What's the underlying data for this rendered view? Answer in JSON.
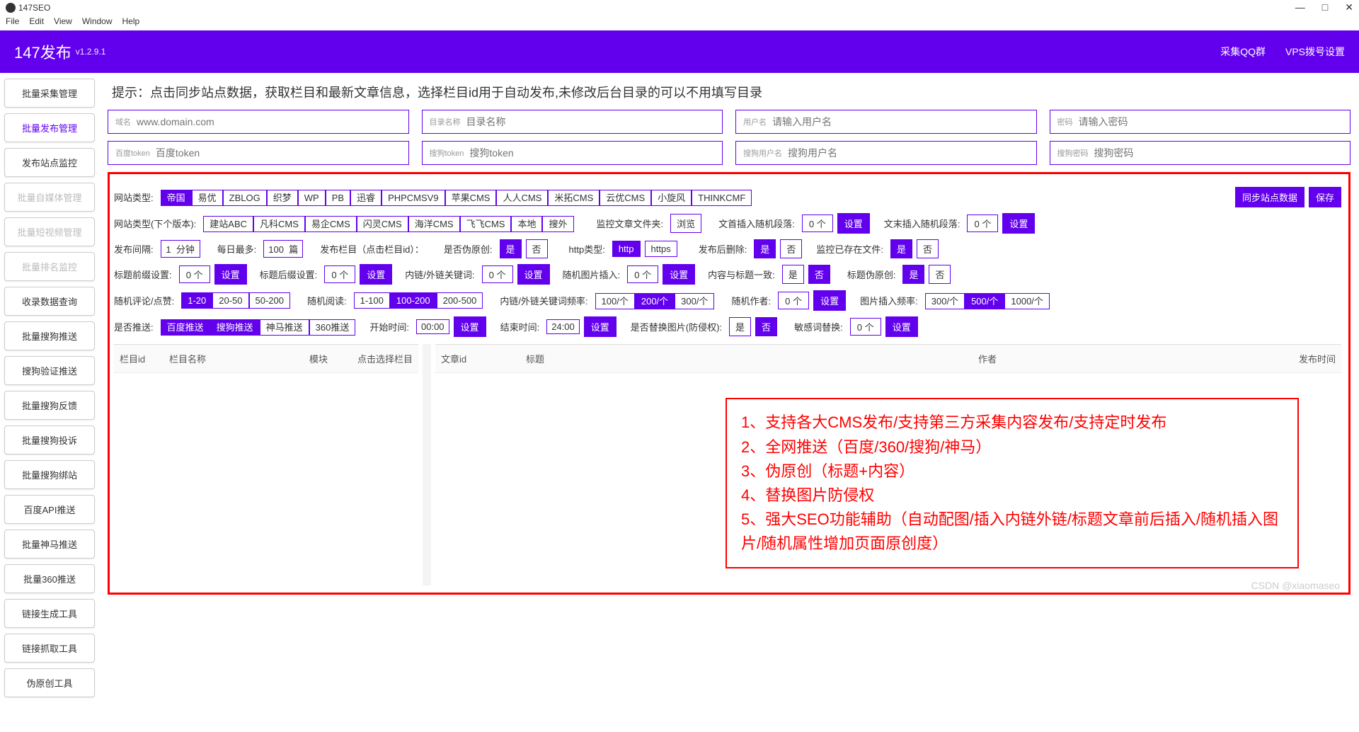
{
  "win": {
    "title": "147SEO",
    "min": "—",
    "max": "□",
    "close": "✕"
  },
  "menu": [
    "File",
    "Edit",
    "View",
    "Window",
    "Help"
  ],
  "header": {
    "title": "147发布",
    "version": "v1.2.9.1",
    "right": [
      "采集QQ群",
      "VPS拨号设置"
    ]
  },
  "sidebar": [
    {
      "label": "批量采集管理",
      "state": ""
    },
    {
      "label": "批量发布管理",
      "state": "active"
    },
    {
      "label": "发布站点监控",
      "state": ""
    },
    {
      "label": "批量自媒体管理",
      "state": "disabled"
    },
    {
      "label": "批量短视频管理",
      "state": "disabled"
    },
    {
      "label": "批量排名监控",
      "state": "disabled"
    },
    {
      "label": "收录数据查询",
      "state": ""
    },
    {
      "label": "批量搜狗推送",
      "state": ""
    },
    {
      "label": "搜狗验证推送",
      "state": ""
    },
    {
      "label": "批量搜狗反馈",
      "state": ""
    },
    {
      "label": "批量搜狗投诉",
      "state": ""
    },
    {
      "label": "批量搜狗绑站",
      "state": ""
    },
    {
      "label": "百度API推送",
      "state": ""
    },
    {
      "label": "批量神马推送",
      "state": ""
    },
    {
      "label": "批量360推送",
      "state": ""
    },
    {
      "label": "链接生成工具",
      "state": ""
    },
    {
      "label": "链接抓取工具",
      "state": ""
    },
    {
      "label": "伪原创工具",
      "state": ""
    }
  ],
  "tip": "提示：点击同步站点数据，获取栏目和最新文章信息，选择栏目id用于自动发布,未修改后台目录的可以不用填写目录",
  "fields1": [
    {
      "lbl": "域名",
      "ph": "www.domain.com"
    },
    {
      "lbl": "目录名称",
      "ph": "目录名称"
    },
    {
      "lbl": "用户名",
      "ph": "请输入用户名"
    },
    {
      "lbl": "密码",
      "ph": "请输入密码"
    }
  ],
  "fields2": [
    {
      "lbl": "百度token",
      "ph": "百度token"
    },
    {
      "lbl": "搜狗token",
      "ph": "搜狗token"
    },
    {
      "lbl": "搜狗用户名",
      "ph": "搜狗用户名"
    },
    {
      "lbl": "搜狗密码",
      "ph": "搜狗密码"
    }
  ],
  "siteTypeLabel": "网站类型:",
  "siteTypes": [
    {
      "t": "帝国",
      "s": 1
    },
    {
      "t": "易优"
    },
    {
      "t": "ZBLOG"
    },
    {
      "t": "织梦"
    },
    {
      "t": "WP"
    },
    {
      "t": "PB"
    },
    {
      "t": "迅睿"
    },
    {
      "t": "PHPCMSV9"
    },
    {
      "t": "苹果CMS"
    },
    {
      "t": "人人CMS"
    },
    {
      "t": "米拓CMS"
    },
    {
      "t": "云优CMS"
    },
    {
      "t": "小旋风"
    },
    {
      "t": "THINKCMF"
    }
  ],
  "syncBtn": "同步站点数据",
  "saveBtn": "保存",
  "nextVerLabel": "网站类型(下个版本):",
  "nextVer": [
    "建站ABC",
    "凡科CMS",
    "易企CMS",
    "闪灵CMS",
    "海洋CMS",
    "飞飞CMS",
    "本地",
    "搜外"
  ],
  "monitorFolderLabel": "监控文章文件夹:",
  "browseBtn": "浏览",
  "prefixInsertLabel": "文首插入随机段落:",
  "suffixInsertLabel": "文末插入随机段落:",
  "zero": "0",
  "unitGe": "个",
  "setBtn": "设置",
  "intervalLabel": "发布间隔:",
  "intervalVal": "1",
  "intervalUnit": "分钟",
  "dailyMaxLabel": "每日最多:",
  "dailyMaxVal": "100",
  "dailyUnit": "篇",
  "columnLabel": "发布栏目（点击栏目id）：",
  "pseudoLabel": "是否伪原创:",
  "yes": "是",
  "no": "否",
  "httpLabel": "http类型:",
  "http": "http",
  "https": "https",
  "delAfterLabel": "发布后删除:",
  "monitorExistLabel": "监控已存在文件:",
  "titlePrefixLabel": "标题前缀设置:",
  "titleSuffixLabel": "标题后缀设置:",
  "linkKwLabel": "内链/外链关键词:",
  "randImgLabel": "随机图片插入:",
  "contentTitleLabel": "内容与标题一致:",
  "titlePseudoLabel": "标题伪原创:",
  "randCommentLabel": "随机评论/点赞:",
  "commentRanges": [
    {
      "t": "1-20",
      "s": 1
    },
    {
      "t": "20-50"
    },
    {
      "t": "50-200"
    }
  ],
  "randReadLabel": "随机阅读:",
  "readRanges": [
    {
      "t": "1-100"
    },
    {
      "t": "100-200",
      "s": 1
    },
    {
      "t": "200-500"
    }
  ],
  "linkFreqLabel": "内链/外链关键词频率:",
  "linkFreq": [
    {
      "t": "100/个"
    },
    {
      "t": "200/个",
      "s": 1
    },
    {
      "t": "300/个"
    }
  ],
  "randAuthorLabel": "随机作者:",
  "imgFreqLabel": "图片插入频率:",
  "imgFreq": [
    {
      "t": "300/个"
    },
    {
      "t": "500/个",
      "s": 1
    },
    {
      "t": "1000/个"
    }
  ],
  "pushLabel": "是否推送:",
  "pushOpts": [
    {
      "t": "百度推送",
      "s": 1
    },
    {
      "t": "搜狗推送",
      "s": 1
    },
    {
      "t": "神马推送"
    },
    {
      "t": "360推送"
    }
  ],
  "startTimeLabel": "开始时间:",
  "startTime": "00:00",
  "endTimeLabel": "结束时间:",
  "endTime": "24:00",
  "replaceImgLabel": "是否替换图片(防侵权):",
  "sensReplaceLabel": "敏感词替换:",
  "tableLeft": [
    "栏目id",
    "栏目名称",
    "模块",
    "点击选择栏目"
  ],
  "tableRight": [
    "文章id",
    "标题",
    "作者",
    "发布时间"
  ],
  "annot": [
    "1、支持各大CMS发布/支持第三方采集内容发布/支持定时发布",
    "2、全网推送（百度/360/搜狗/神马）",
    "3、伪原创（标题+内容）",
    "4、替换图片防侵权",
    "5、强大SEO功能辅助（自动配图/插入内链外链/标题文章前后插入/随机插入图片/随机属性增加页面原创度）"
  ],
  "watermark": "CSDN @xiaomaseo"
}
